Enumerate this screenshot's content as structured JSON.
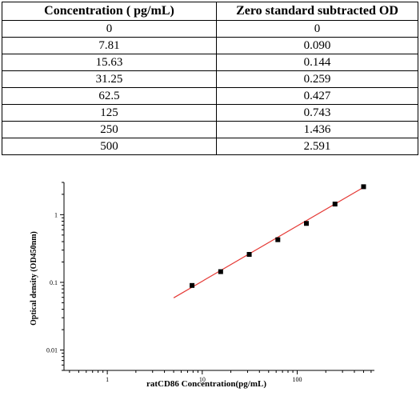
{
  "table": {
    "headers": [
      "Concentration ( pg/mL)",
      "Zero standard subtracted OD"
    ],
    "rows": [
      [
        "0",
        "0"
      ],
      [
        "7.81",
        "0.090"
      ],
      [
        "15.63",
        "0.144"
      ],
      [
        "31.25",
        "0.259"
      ],
      [
        "62.5",
        "0.427"
      ],
      [
        "125",
        "0.743"
      ],
      [
        "250",
        "1.436"
      ],
      [
        "500",
        "2.591"
      ]
    ]
  },
  "chart_data": {
    "type": "scatter",
    "xlabel": "ratCD86 Concentration(pg/mL)",
    "ylabel": "Optical density (OD450nm)",
    "x_scale": "log",
    "y_scale": "log",
    "xlim": [
      0.35,
      650
    ],
    "ylim": [
      0.005,
      3
    ],
    "x_ticks": [
      1,
      10,
      100
    ],
    "x_tick_labels": [
      "1",
      "10",
      "100"
    ],
    "y_ticks": [
      0.01,
      0.1,
      1
    ],
    "y_tick_labels": [
      "0.01",
      "0.1",
      "1"
    ],
    "grid": false,
    "series": [
      {
        "marker": "square",
        "color": "#000000",
        "x": [
          7.81,
          15.63,
          31.25,
          62.5,
          125,
          250,
          500
        ],
        "y": [
          0.09,
          0.144,
          0.259,
          0.427,
          0.743,
          1.436,
          2.591
        ]
      }
    ],
    "fit_line": {
      "color": "#e53935",
      "x": [
        5,
        520
      ],
      "y": [
        0.059,
        2.62
      ]
    }
  }
}
